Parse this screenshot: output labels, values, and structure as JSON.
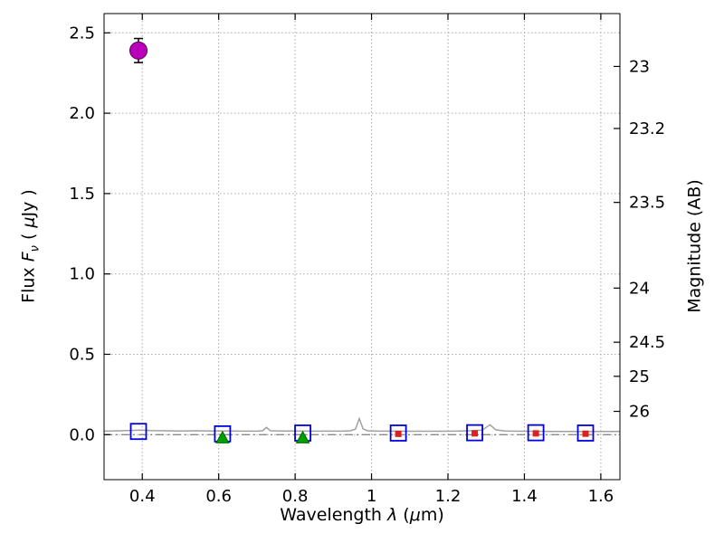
{
  "labels": {
    "xlabel": {
      "p1": "Wavelength  ",
      "lam": "λ",
      "p2": " (",
      "mu": "μ",
      "p3": "m)"
    },
    "ylabel_left": {
      "p1": "Flux  ",
      "f": "F",
      "nu": "ν",
      "p2": "  ( ",
      "mu": "μ",
      "p3": "Jy )"
    },
    "ylabel_right": "Magnitude (AB)"
  },
  "colors": {
    "background": "#ffffff",
    "frame": "#000000",
    "grid": "#aaaaaa",
    "zero_line": "#666666",
    "spectrum": "#a0a0a0",
    "blue_square": "#0000dd",
    "green_triangle": "#00a000",
    "green_triangle_edge": "#006600",
    "red_point": "#e02020",
    "magenta_point": "#bb00bb",
    "magenta_edge": "#550055",
    "error_bar": "#000000",
    "tick_label": "#000000"
  },
  "chart_data": {
    "type": "scatter",
    "title": "",
    "xlabel": "Wavelength λ (μm)",
    "ylabel": "Flux Fν ( μJy )",
    "ylabel_right": "Magnitude (AB)",
    "xlim": [
      0.3,
      1.65
    ],
    "ylim": [
      -0.28,
      2.62
    ],
    "grid": true,
    "x_ticks": [
      0.4,
      0.6,
      0.8,
      1.0,
      1.2,
      1.4,
      1.6
    ],
    "x_tick_labels": [
      "0.4",
      "0.6",
      "0.8",
      "1",
      "1.2",
      "1.4",
      "1.6"
    ],
    "y_ticks_left": [
      0.0,
      0.5,
      1.0,
      1.5,
      2.0,
      2.5
    ],
    "y_tick_labels_left": [
      "0.0",
      "0.5",
      "1.0",
      "1.5",
      "2.0",
      "2.5"
    ],
    "y_ticks_right": [
      {
        "label": "23",
        "flux": 2.291
      },
      {
        "label": "23.2",
        "flux": 1.905
      },
      {
        "label": "23.5",
        "flux": 1.445
      },
      {
        "label": "24",
        "flux": 0.912
      },
      {
        "label": "24.5",
        "flux": 0.575
      },
      {
        "label": "25",
        "flux": 0.363
      },
      {
        "label": "26",
        "flux": 0.145
      }
    ],
    "zero_line": {
      "y": 0.0
    },
    "series": [
      {
        "name": "model-spectrum",
        "type": "line",
        "points": [
          [
            0.3,
            0.022
          ],
          [
            0.34,
            0.024
          ],
          [
            0.38,
            0.027
          ],
          [
            0.4,
            0.028
          ],
          [
            0.42,
            0.026
          ],
          [
            0.46,
            0.024
          ],
          [
            0.5,
            0.023
          ],
          [
            0.54,
            0.024
          ],
          [
            0.58,
            0.023
          ],
          [
            0.62,
            0.023
          ],
          [
            0.66,
            0.022
          ],
          [
            0.7,
            0.022
          ],
          [
            0.715,
            0.024
          ],
          [
            0.725,
            0.045
          ],
          [
            0.735,
            0.024
          ],
          [
            0.76,
            0.023
          ],
          [
            0.8,
            0.023
          ],
          [
            0.84,
            0.022
          ],
          [
            0.88,
            0.022
          ],
          [
            0.92,
            0.022
          ],
          [
            0.945,
            0.024
          ],
          [
            0.958,
            0.035
          ],
          [
            0.968,
            0.1
          ],
          [
            0.978,
            0.035
          ],
          [
            0.99,
            0.024
          ],
          [
            1.02,
            0.022
          ],
          [
            1.06,
            0.022
          ],
          [
            1.1,
            0.021
          ],
          [
            1.14,
            0.021
          ],
          [
            1.18,
            0.021
          ],
          [
            1.22,
            0.022
          ],
          [
            1.26,
            0.024
          ],
          [
            1.29,
            0.028
          ],
          [
            1.31,
            0.062
          ],
          [
            1.325,
            0.03
          ],
          [
            1.35,
            0.023
          ],
          [
            1.39,
            0.021
          ],
          [
            1.43,
            0.021
          ],
          [
            1.47,
            0.02
          ],
          [
            1.51,
            0.02
          ],
          [
            1.55,
            0.02
          ],
          [
            1.59,
            0.02
          ],
          [
            1.63,
            0.02
          ],
          [
            1.65,
            0.02
          ]
        ]
      },
      {
        "name": "observed-photometry-squares",
        "type": "scatter",
        "marker": "square-open",
        "points": [
          [
            0.39,
            0.02
          ],
          [
            0.61,
            0.005
          ],
          [
            0.82,
            0.01
          ],
          [
            1.07,
            0.01
          ],
          [
            1.27,
            0.012
          ],
          [
            1.43,
            0.012
          ],
          [
            1.56,
            0.01
          ]
        ]
      },
      {
        "name": "limit-triangles",
        "type": "scatter",
        "marker": "triangle-filled",
        "points": [
          [
            0.61,
            -0.02
          ],
          [
            0.82,
            -0.02
          ]
        ]
      },
      {
        "name": "model-photometry-points",
        "type": "scatter",
        "marker": "square-filled",
        "points": [
          [
            1.07,
            0.005
          ],
          [
            1.27,
            0.008
          ],
          [
            1.43,
            0.008
          ],
          [
            1.56,
            0.006
          ]
        ]
      },
      {
        "name": "detection-circle",
        "type": "scatter",
        "marker": "circle-filled",
        "yerr": 0.075,
        "points": [
          [
            0.39,
            2.39
          ]
        ]
      }
    ]
  }
}
